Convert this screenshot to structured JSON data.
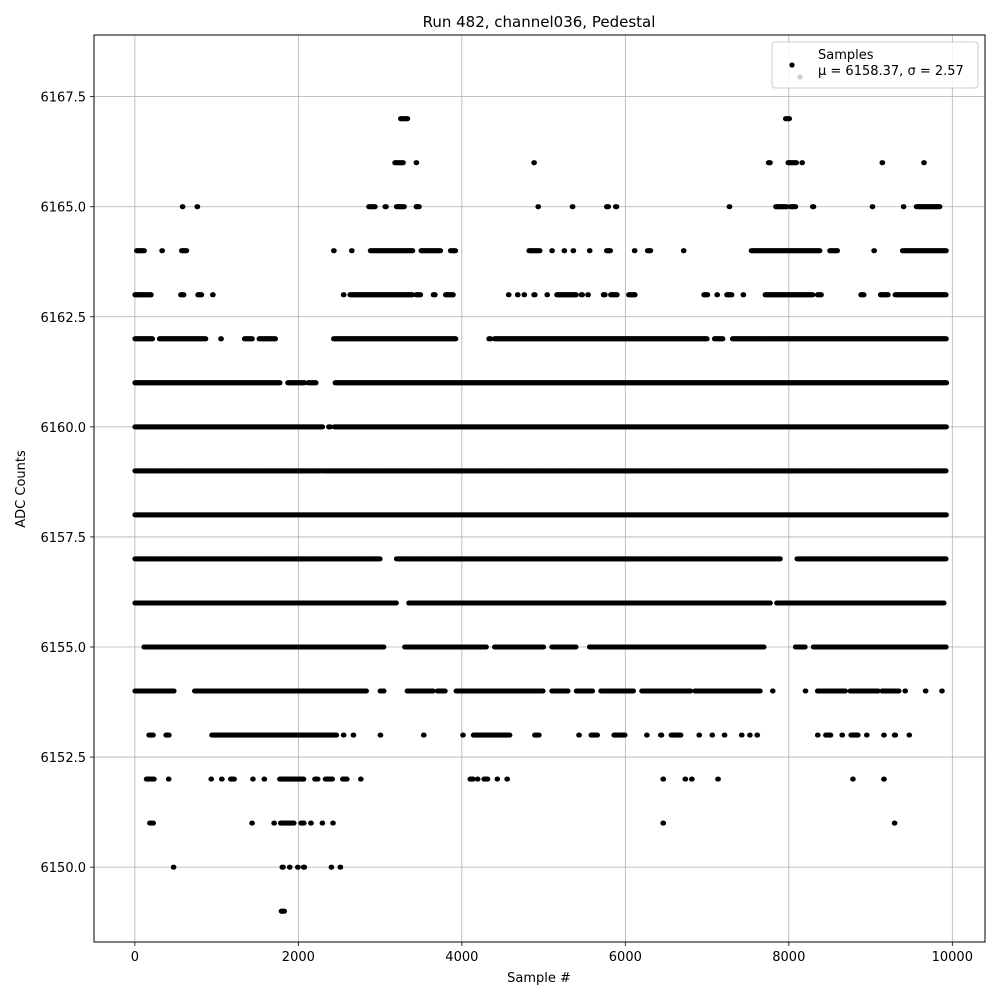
{
  "chart_data": {
    "type": "scatter",
    "title": "Run 482, channel036, Pedestal",
    "xlabel": "Sample #",
    "ylabel": "ADC Counts",
    "xlim": [
      -500,
      10400
    ],
    "ylim": [
      6148.3,
      6168.9
    ],
    "x_ticks": [
      0,
      2000,
      4000,
      6000,
      8000,
      10000
    ],
    "x_tick_labels": [
      "0",
      "2000",
      "4000",
      "6000",
      "8000",
      "10000"
    ],
    "y_ticks": [
      6150.0,
      6152.5,
      6155.0,
      6157.5,
      6160.0,
      6162.5,
      6165.0,
      6167.5
    ],
    "y_tick_labels": [
      "6150.0",
      "6152.5",
      "6155.0",
      "6157.5",
      "6160.0",
      "6162.5",
      "6165.0",
      "6167.5"
    ],
    "grid": true,
    "legend_position": "top-right",
    "marker_color": "#000000",
    "series": [
      {
        "name": "Samples",
        "legend_stats": "μ = 6158.37, σ = 2.57",
        "levels": [
          {
            "y": 6167,
            "x_ranges": [
              [
                3250,
                3340
              ],
              [
                7960,
                8010
              ]
            ]
          },
          {
            "y": 6166,
            "x_ranges": [
              [
                3180,
                3290
              ],
              [
                3440,
                3450
              ],
              [
                4880,
                4890
              ],
              [
                7750,
                7780
              ],
              [
                7990,
                8100
              ],
              [
                8160,
                8170
              ],
              [
                9140,
                9150
              ],
              [
                9650,
                9660
              ]
            ]
          },
          {
            "y": 6165,
            "x_ranges": [
              [
                580,
                590
              ],
              [
                760,
                770
              ],
              [
                2860,
                2940
              ],
              [
                3060,
                3080
              ],
              [
                3200,
                3300
              ],
              [
                3440,
                3480
              ],
              [
                4930,
                4940
              ],
              [
                5350,
                5360
              ],
              [
                5770,
                5800
              ],
              [
                5880,
                5900
              ],
              [
                7270,
                7280
              ],
              [
                7840,
                7980
              ],
              [
                8020,
                8090
              ],
              [
                8290,
                8310
              ],
              [
                9020,
                9030
              ],
              [
                9400,
                9410
              ],
              [
                9560,
                9850
              ]
            ]
          },
          {
            "y": 6164,
            "x_ranges": [
              [
                20,
                120
              ],
              [
                330,
                340
              ],
              [
                570,
                640
              ],
              [
                2430,
                2440
              ],
              [
                2650,
                2660
              ],
              [
                2880,
                3400
              ],
              [
                3500,
                3740
              ],
              [
                3860,
                3930
              ],
              [
                4820,
                4960
              ],
              [
                5100,
                5110
              ],
              [
                5250,
                5260
              ],
              [
                5360,
                5370
              ],
              [
                5560,
                5570
              ],
              [
                5770,
                5820
              ],
              [
                6110,
                6120
              ],
              [
                6270,
                6310
              ],
              [
                6710,
                6720
              ],
              [
                7540,
                8380
              ],
              [
                8500,
                8600
              ],
              [
                9040,
                9050
              ],
              [
                9390,
                9930
              ]
            ]
          },
          {
            "y": 6163,
            "x_ranges": [
              [
                0,
                200
              ],
              [
                560,
                600
              ],
              [
                770,
                820
              ],
              [
                950,
                960
              ],
              [
                2550,
                2560
              ],
              [
                2630,
                3400
              ],
              [
                3440,
                3500
              ],
              [
                3650,
                3680
              ],
              [
                3800,
                3900
              ],
              [
                4570,
                4580
              ],
              [
                4680,
                4690
              ],
              [
                4760,
                4770
              ],
              [
                4880,
                4900
              ],
              [
                5040,
                5050
              ],
              [
                5160,
                5400
              ],
              [
                5460,
                5480
              ],
              [
                5540,
                5550
              ],
              [
                5730,
                5760
              ],
              [
                5820,
                5900
              ],
              [
                6040,
                6120
              ],
              [
                6960,
                7010
              ],
              [
                7120,
                7130
              ],
              [
                7240,
                7310
              ],
              [
                7440,
                7450
              ],
              [
                7710,
                8300
              ],
              [
                8350,
                8400
              ],
              [
                8880,
                8920
              ],
              [
                9120,
                9220
              ],
              [
                9300,
                9930
              ]
            ]
          },
          {
            "y": 6162,
            "x_ranges": [
              [
                0,
                220
              ],
              [
                300,
                870
              ],
              [
                1050,
                1060
              ],
              [
                1340,
                1440
              ],
              [
                1520,
                1720
              ],
              [
                2430,
                3930
              ],
              [
                4330,
                4360
              ],
              [
                4400,
                7000
              ],
              [
                7090,
                7200
              ],
              [
                7310,
                9930
              ]
            ]
          },
          {
            "y": 6161,
            "x_ranges": [
              [
                0,
                1780
              ],
              [
                1870,
                2080
              ],
              [
                2120,
                2220
              ],
              [
                2450,
                9930
              ]
            ]
          },
          {
            "y": 6160,
            "x_ranges": [
              [
                0,
                2300
              ],
              [
                2370,
                2400
              ],
              [
                2440,
                9930
              ]
            ]
          },
          {
            "y": 6159,
            "x_ranges": [
              [
                0,
                2280
              ],
              [
                2300,
                9930
              ]
            ]
          },
          {
            "y": 6158,
            "x_ranges": [
              [
                0,
                9930
              ]
            ]
          },
          {
            "y": 6157,
            "x_ranges": [
              [
                0,
                3000
              ],
              [
                3200,
                7900
              ],
              [
                8100,
                9930
              ]
            ]
          },
          {
            "y": 6156,
            "x_ranges": [
              [
                0,
                3200
              ],
              [
                3350,
                7780
              ],
              [
                7850,
                9900
              ]
            ]
          },
          {
            "y": 6155,
            "x_ranges": [
              [
                110,
                3050
              ],
              [
                3300,
                4300
              ],
              [
                4400,
                5000
              ],
              [
                5100,
                5400
              ],
              [
                5560,
                7700
              ],
              [
                8080,
                8200
              ],
              [
                8300,
                9930
              ]
            ]
          },
          {
            "y": 6154,
            "x_ranges": [
              [
                0,
                480
              ],
              [
                730,
                2840
              ],
              [
                3000,
                3050
              ],
              [
                3330,
                3650
              ],
              [
                3700,
                3800
              ],
              [
                3930,
                5000
              ],
              [
                5100,
                5300
              ],
              [
                5400,
                5600
              ],
              [
                5700,
                6100
              ],
              [
                6200,
                6800
              ],
              [
                6850,
                7650
              ],
              [
                7800,
                7810
              ],
              [
                8200,
                8210
              ],
              [
                8350,
                8700
              ],
              [
                8750,
                9100
              ],
              [
                9140,
                9350
              ],
              [
                9420,
                9430
              ],
              [
                9670,
                9680
              ],
              [
                9870,
                9880
              ]
            ]
          },
          {
            "y": 6153,
            "x_ranges": [
              [
                170,
                230
              ],
              [
                380,
                420
              ],
              [
                940,
                2470
              ],
              [
                2550,
                2560
              ],
              [
                2670,
                2680
              ],
              [
                3000,
                3010
              ],
              [
                3530,
                3540
              ],
              [
                4010,
                4020
              ],
              [
                4140,
                4590
              ],
              [
                4890,
                4950
              ],
              [
                5430,
                5440
              ],
              [
                5580,
                5660
              ],
              [
                5860,
                6000
              ],
              [
                6260,
                6270
              ],
              [
                6430,
                6450
              ],
              [
                6560,
                6680
              ],
              [
                6900,
                6910
              ],
              [
                7060,
                7070
              ],
              [
                7210,
                7220
              ],
              [
                7420,
                7430
              ],
              [
                7520,
                7530
              ],
              [
                7610,
                7620
              ],
              [
                8350,
                8360
              ],
              [
                8450,
                8520
              ],
              [
                8650,
                8660
              ],
              [
                8760,
                8850
              ],
              [
                8950,
                8960
              ],
              [
                9160,
                9170
              ],
              [
                9290,
                9310
              ],
              [
                9470,
                9480
              ]
            ]
          },
          {
            "y": 6152,
            "x_ranges": [
              [
                140,
                240
              ],
              [
                410,
                420
              ],
              [
                930,
                940
              ],
              [
                1060,
                1070
              ],
              [
                1170,
                1220
              ],
              [
                1440,
                1450
              ],
              [
                1580,
                1590
              ],
              [
                1770,
                2070
              ],
              [
                2200,
                2240
              ],
              [
                2330,
                2420
              ],
              [
                2540,
                2600
              ],
              [
                2760,
                2770
              ],
              [
                4100,
                4140
              ],
              [
                4190,
                4200
              ],
              [
                4270,
                4320
              ],
              [
                4430,
                4440
              ],
              [
                4550,
                4560
              ],
              [
                6460,
                6470
              ],
              [
                6730,
                6740
              ],
              [
                6810,
                6820
              ],
              [
                7130,
                7140
              ],
              [
                8780,
                8790
              ],
              [
                9160,
                9170
              ]
            ]
          },
          {
            "y": 6151,
            "x_ranges": [
              [
                180,
                230
              ],
              [
                1430,
                1440
              ],
              [
                1700,
                1710
              ],
              [
                1780,
                1950
              ],
              [
                2030,
                2070
              ],
              [
                2150,
                2160
              ],
              [
                2290,
                2300
              ],
              [
                2420,
                2430
              ],
              [
                6460,
                6470
              ],
              [
                9290,
                9300
              ]
            ]
          },
          {
            "y": 6150,
            "x_ranges": [
              [
                470,
                480
              ],
              [
                1800,
                1820
              ],
              [
                1890,
                1900
              ],
              [
                1990,
                2000
              ],
              [
                2060,
                2080
              ],
              [
                2400,
                2410
              ],
              [
                2510,
                2520
              ]
            ]
          },
          {
            "y": 6149,
            "x_ranges": [
              [
                1790,
                1830
              ]
            ]
          }
        ]
      }
    ]
  }
}
